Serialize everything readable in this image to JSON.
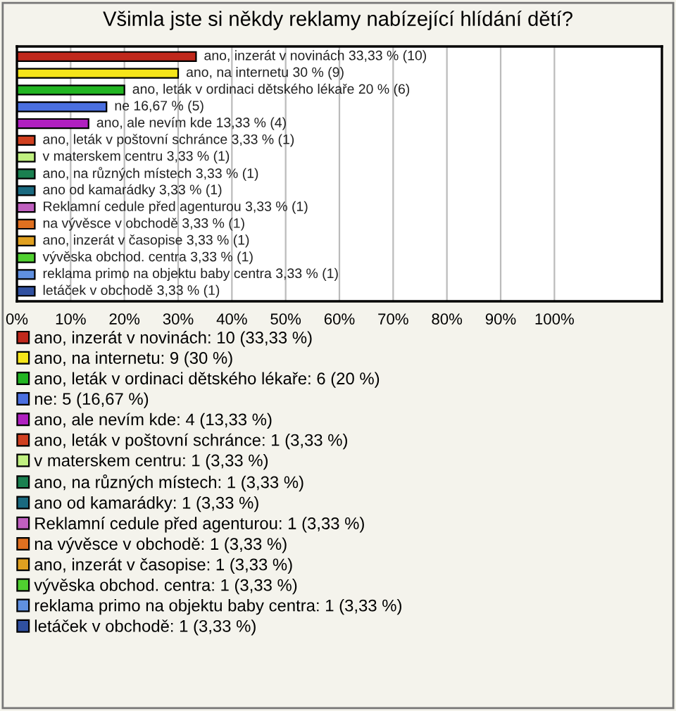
{
  "chart_data": {
    "type": "bar",
    "orientation": "horizontal",
    "title": "Všimla jste si někdy reklamy nabízející hlídání dětí?",
    "categories": [
      null,
      null,
      null,
      null,
      null,
      null,
      null,
      null,
      null,
      null,
      null,
      null,
      null,
      null,
      null
    ],
    "series": [
      {
        "name": "ano, inzerát v novinách: 10 (33,33 %)",
        "color": "#c0281c",
        "values": [
          33.33,
          null,
          null,
          null,
          null,
          null,
          null,
          null,
          null,
          null,
          null,
          null,
          null,
          null,
          null
        ],
        "value_labels": [
          "ano, inzerát v novinách 33,33 % (10)",
          null,
          null,
          null,
          null,
          null,
          null,
          null,
          null,
          null,
          null,
          null,
          null,
          null,
          null
        ]
      },
      {
        "name": "ano, na internetu: 9 (30 %)",
        "color": "#f5e51a",
        "values": [
          null,
          30,
          null,
          null,
          null,
          null,
          null,
          null,
          null,
          null,
          null,
          null,
          null,
          null,
          null
        ],
        "value_labels": [
          null,
          "ano, na internetu 30 % (9)",
          null,
          null,
          null,
          null,
          null,
          null,
          null,
          null,
          null,
          null,
          null,
          null,
          null
        ]
      },
      {
        "name": "ano, leták v ordinaci dětského lékaře: 6 (20 %)",
        "color": "#22b522",
        "values": [
          null,
          null,
          20,
          null,
          null,
          null,
          null,
          null,
          null,
          null,
          null,
          null,
          null,
          null,
          null
        ],
        "value_labels": [
          null,
          null,
          "ano, leták v ordinaci dětského lékaře 20 % (6)",
          null,
          null,
          null,
          null,
          null,
          null,
          null,
          null,
          null,
          null,
          null,
          null
        ]
      },
      {
        "name": "ne: 5 (16,67 %)",
        "color": "#4a6fe0",
        "values": [
          null,
          null,
          null,
          16.67,
          null,
          null,
          null,
          null,
          null,
          null,
          null,
          null,
          null,
          null,
          null
        ],
        "value_labels": [
          null,
          null,
          null,
          "ne 16,67 % (5)",
          null,
          null,
          null,
          null,
          null,
          null,
          null,
          null,
          null,
          null,
          null
        ]
      },
      {
        "name": "ano, ale nevím kde: 4 (13,33 %)",
        "color": "#b020c0",
        "values": [
          null,
          null,
          null,
          null,
          13.33,
          null,
          null,
          null,
          null,
          null,
          null,
          null,
          null,
          null,
          null
        ],
        "value_labels": [
          null,
          null,
          null,
          null,
          "ano, ale nevím kde 13,33 % (4)",
          null,
          null,
          null,
          null,
          null,
          null,
          null,
          null,
          null,
          null
        ]
      },
      {
        "name": "ano, leták v poštovní schránce: 1 (3,33 %)",
        "color": "#d04020",
        "values": [
          null,
          null,
          null,
          null,
          null,
          3.33,
          null,
          null,
          null,
          null,
          null,
          null,
          null,
          null,
          null
        ],
        "value_labels": [
          null,
          null,
          null,
          null,
          null,
          "ano, leták v poštovní schránce 3,33 % (1)",
          null,
          null,
          null,
          null,
          null,
          null,
          null,
          null,
          null
        ]
      },
      {
        "name": "v materskem centru: 1 (3,33 %)",
        "color": "#c0f080",
        "values": [
          null,
          null,
          null,
          null,
          null,
          null,
          3.33,
          null,
          null,
          null,
          null,
          null,
          null,
          null,
          null
        ],
        "value_labels": [
          null,
          null,
          null,
          null,
          null,
          null,
          "v materskem centru 3,33 % (1)",
          null,
          null,
          null,
          null,
          null,
          null,
          null,
          null
        ]
      },
      {
        "name": "ano, na různých místech: 1 (3,33 %)",
        "color": "#1a8050",
        "values": [
          null,
          null,
          null,
          null,
          null,
          null,
          null,
          3.33,
          null,
          null,
          null,
          null,
          null,
          null,
          null
        ],
        "value_labels": [
          null,
          null,
          null,
          null,
          null,
          null,
          null,
          "ano, na různých místech 3,33 % (1)",
          null,
          null,
          null,
          null,
          null,
          null,
          null
        ]
      },
      {
        "name": "ano od kamarádky: 1 (3,33 %)",
        "color": "#1a6a80",
        "values": [
          null,
          null,
          null,
          null,
          null,
          null,
          null,
          null,
          3.33,
          null,
          null,
          null,
          null,
          null,
          null
        ],
        "value_labels": [
          null,
          null,
          null,
          null,
          null,
          null,
          null,
          null,
          "ano od kamarádky 3,33 % (1)",
          null,
          null,
          null,
          null,
          null,
          null
        ]
      },
      {
        "name": "Reklamní cedule před agenturou: 1 (3,33 %)",
        "color": "#c060c0",
        "values": [
          null,
          null,
          null,
          null,
          null,
          null,
          null,
          null,
          null,
          3.33,
          null,
          null,
          null,
          null,
          null
        ],
        "value_labels": [
          null,
          null,
          null,
          null,
          null,
          null,
          null,
          null,
          null,
          "Reklamní cedule před agenturou 3,33 % (1)",
          null,
          null,
          null,
          null,
          null
        ]
      },
      {
        "name": "na vývěsce v obchodě: 1 (3,33 %)",
        "color": "#e07020",
        "values": [
          null,
          null,
          null,
          null,
          null,
          null,
          null,
          null,
          null,
          null,
          3.33,
          null,
          null,
          null,
          null
        ],
        "value_labels": [
          null,
          null,
          null,
          null,
          null,
          null,
          null,
          null,
          null,
          null,
          "na vývěsce v obchodě 3,33 % (1)",
          null,
          null,
          null,
          null
        ]
      },
      {
        "name": "ano, inzerát v časopise: 1 (3,33 %)",
        "color": "#e0a020",
        "values": [
          null,
          null,
          null,
          null,
          null,
          null,
          null,
          null,
          null,
          null,
          null,
          3.33,
          null,
          null,
          null
        ],
        "value_labels": [
          null,
          null,
          null,
          null,
          null,
          null,
          null,
          null,
          null,
          null,
          null,
          "ano, inzerát v časopise 3,33 % (1)",
          null,
          null,
          null
        ]
      },
      {
        "name": "vývěska obchod. centra: 1 (3,33 %)",
        "color": "#50d030",
        "values": [
          null,
          null,
          null,
          null,
          null,
          null,
          null,
          null,
          null,
          null,
          null,
          null,
          3.33,
          null,
          null
        ],
        "value_labels": [
          null,
          null,
          null,
          null,
          null,
          null,
          null,
          null,
          null,
          null,
          null,
          null,
          "vývěska obchod. centra 3,33 % (1)",
          null,
          null
        ]
      },
      {
        "name": "reklama primo na objektu baby centra: 1 (3,33 %)",
        "color": "#6090e0",
        "values": [
          null,
          null,
          null,
          null,
          null,
          null,
          null,
          null,
          null,
          null,
          null,
          null,
          null,
          3.33,
          null
        ],
        "value_labels": [
          null,
          null,
          null,
          null,
          null,
          null,
          null,
          null,
          null,
          null,
          null,
          null,
          null,
          "reklama primo na objektu baby centra 3,33 % (1)",
          null
        ]
      },
      {
        "name": "letáček v obchodě: 1 (3,33 %)",
        "color": "#3050a0",
        "values": [
          null,
          null,
          null,
          null,
          null,
          null,
          null,
          null,
          null,
          null,
          null,
          null,
          null,
          null,
          3.33
        ],
        "value_labels": [
          null,
          null,
          null,
          null,
          null,
          null,
          null,
          null,
          null,
          null,
          null,
          null,
          null,
          null,
          "letáček v obchodě 3,33 % (1)"
        ]
      }
    ],
    "xlim": [
      0,
      120
    ],
    "xticks": [
      {
        "value": 0,
        "label": "0%"
      },
      {
        "value": 10,
        "label": "10%"
      },
      {
        "value": 20,
        "label": "20%"
      },
      {
        "value": 30,
        "label": "30%"
      },
      {
        "value": 40,
        "label": "40%"
      },
      {
        "value": 50,
        "label": "50%"
      },
      {
        "value": 60,
        "label": "60%"
      },
      {
        "value": 70,
        "label": "70%"
      },
      {
        "value": 80,
        "label": "80%"
      },
      {
        "value": 90,
        "label": "90%"
      },
      {
        "value": 100,
        "label": "100%"
      }
    ],
    "grid": "x",
    "legend": "bottom"
  }
}
